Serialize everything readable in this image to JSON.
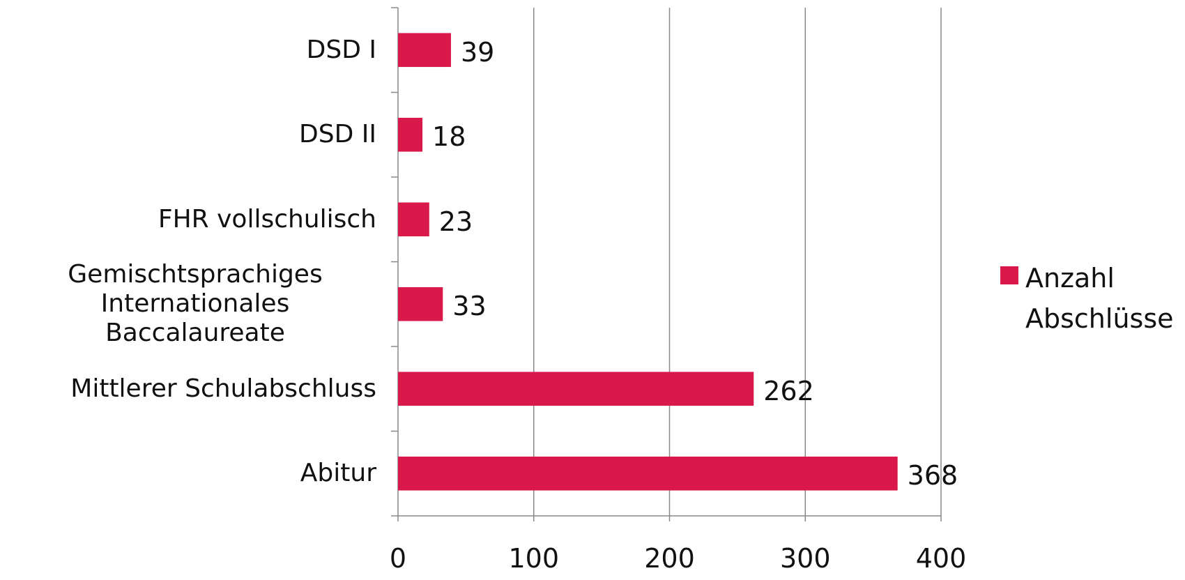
{
  "chart_data": {
    "type": "bar",
    "orientation": "horizontal",
    "categories": [
      "DSD I",
      "DSD II",
      "FHR vollschulisch",
      "Gemischtsprachiges Internationales Baccalaureate",
      "Mittlerer Schulabschluss",
      "Abitur"
    ],
    "series": [
      {
        "name": "Anzahl Abschlüsse",
        "color": "#d9184b",
        "values": [
          39,
          18,
          23,
          33,
          262,
          368
        ]
      }
    ],
    "xlim": [
      0,
      400
    ],
    "xticks": [
      0,
      100,
      200,
      300,
      400
    ],
    "grid": true,
    "legend": "right"
  }
}
